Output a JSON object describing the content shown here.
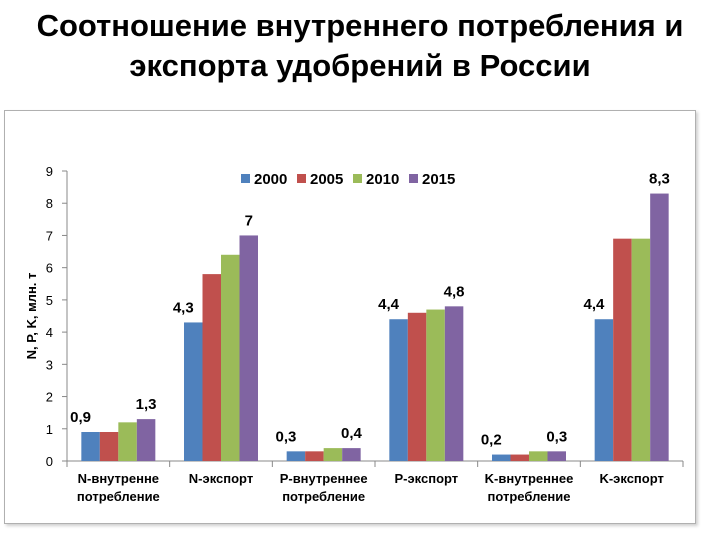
{
  "page": {
    "title_line1": "Соотношение внутреннего потребления и",
    "title_line2": "экспорта удобрений в России"
  },
  "chart_data": {
    "type": "bar",
    "title": "",
    "ylabel": "N, P, K, млн. т",
    "xlabel": "",
    "ylim": [
      0,
      9
    ],
    "yticks": [
      0,
      1,
      2,
      3,
      4,
      5,
      6,
      7,
      8,
      9
    ],
    "grid": false,
    "legend_position": "top",
    "categories": [
      [
        "N-внутренне",
        "потребление"
      ],
      [
        "N-экспорт"
      ],
      [
        "P-внутреннее",
        "потребление"
      ],
      [
        "P-экспорт"
      ],
      [
        "K-внутреннее",
        "потребление"
      ],
      [
        "K-экспорт"
      ]
    ],
    "series": [
      {
        "name": "2000",
        "color": "#4f81bd",
        "values": [
          0.9,
          4.3,
          0.3,
          4.4,
          0.2,
          4.4
        ]
      },
      {
        "name": "2005",
        "color": "#c0504d",
        "values": [
          0.9,
          5.8,
          0.3,
          4.6,
          0.2,
          6.9
        ]
      },
      {
        "name": "2010",
        "color": "#9bbb59",
        "values": [
          1.2,
          6.4,
          0.4,
          4.7,
          0.3,
          6.9
        ]
      },
      {
        "name": "2015",
        "color": "#8064a2",
        "values": [
          1.3,
          7.0,
          0.4,
          4.8,
          0.3,
          8.3
        ]
      }
    ],
    "data_labels": [
      {
        "text": "0,9",
        "category": 0,
        "series": 0
      },
      {
        "text": "1,3",
        "category": 0,
        "series": 3
      },
      {
        "text": "4,3",
        "category": 1,
        "series": 0
      },
      {
        "text": "7",
        "category": 1,
        "series": 3
      },
      {
        "text": "0,3",
        "category": 2,
        "series": 0
      },
      {
        "text": "0,4",
        "category": 2,
        "series": 3
      },
      {
        "text": "4,4",
        "category": 3,
        "series": 0
      },
      {
        "text": "4,8",
        "category": 3,
        "series": 3
      },
      {
        "text": "0,2",
        "category": 4,
        "series": 0
      },
      {
        "text": "0,3",
        "category": 4,
        "series": 3
      },
      {
        "text": "4,4",
        "category": 5,
        "series": 0
      },
      {
        "text": "8,3",
        "category": 5,
        "series": 3
      }
    ]
  }
}
